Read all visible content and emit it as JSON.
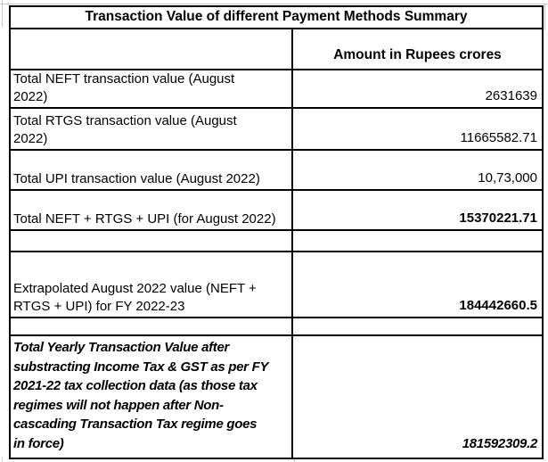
{
  "table": {
    "title": "Transaction Value of different Payment Methods Summary",
    "amount_header": "Amount in Rupees crores",
    "rows": [
      {
        "label": "Total NEFT transaction value (August\n2022)",
        "value": "2631639"
      },
      {
        "label": "Total RTGS transaction value (August\n2022)",
        "value": "11665582.71"
      },
      {
        "label": "Total UPI transaction value (August 2022)",
        "value": "10,73,000"
      },
      {
        "label": "Total NEFT + RTGS + UPI (for August 2022)",
        "value": "15370221.71"
      },
      {
        "label": "",
        "value": ""
      },
      {
        "label": "Extrapolated August 2022 value (NEFT +\nRTGS + UPI) for FY 2022-23",
        "value": "184442660.5"
      },
      {
        "label": "",
        "value": ""
      },
      {
        "label": "Total Yearly Transaction Value after\nsubstracting Income Tax & GST as per FY\n2021-22 tax collection data (as those tax\nregimes will not happen after Non-\ncascading Transaction Tax regime goes\nin force)",
        "value": "181592309.2"
      }
    ]
  },
  "colors": {
    "border": "#000000",
    "gridline": "#c3c7cb",
    "background": "#ffffff",
    "text": "#000000"
  }
}
